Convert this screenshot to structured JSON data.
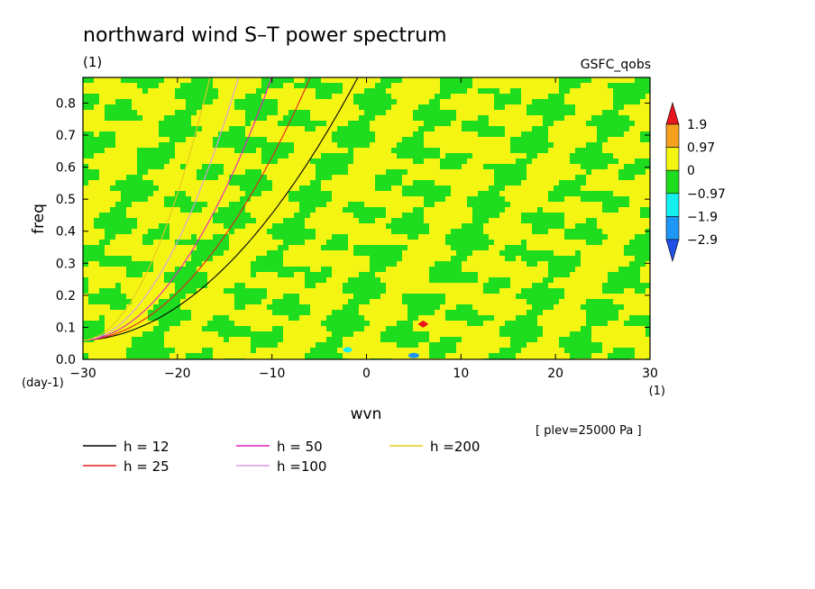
{
  "chart_data": {
    "type": "heatmap",
    "title": "northward wind S–T power spectrum",
    "units_note": "(1)",
    "dataset": "GSFC_qobs",
    "xlabel": "wvn",
    "ylabel": "freq",
    "x_unit": "(1)",
    "y_unit": "(day-1)",
    "xlim": [
      -30,
      30
    ],
    "ylim": [
      0,
      0.88
    ],
    "xticks": [
      -30,
      -20,
      -10,
      0,
      10,
      20,
      30
    ],
    "xtick_labels": [
      "−30",
      "−20",
      "−10",
      "0",
      "10",
      "20",
      "30"
    ],
    "yticks": [
      0,
      0.1,
      0.2,
      0.3,
      0.4,
      0.5,
      0.6,
      0.7,
      0.8
    ],
    "ytick_labels": [
      "0.0",
      "0.1",
      "0.2",
      "0.3",
      "0.4",
      "0.5",
      "0.6",
      "0.7",
      "0.8"
    ],
    "colorbar": {
      "levels": [
        "1.9",
        "0.97",
        "0",
        "−0.97",
        "−1.9",
        "−2.9"
      ],
      "colors": [
        "#e8141e",
        "#f5a01e",
        "#f5f514",
        "#1edc1e",
        "#14f0f0",
        "#1e96f5",
        "#1e50e6"
      ]
    },
    "field_note": "Mostly yellow (0 to 0.97) and green (-0.97 to 0) patchy field; small red spot near wvn 6, freq 0.11; small cyan/blue spots near wvn -2, 0.03 and wvn 5, 0.01",
    "series": [
      {
        "name": "h = 12",
        "color": "#000000",
        "h": 12
      },
      {
        "name": "h = 25",
        "color": "#e61e1e",
        "h": 25
      },
      {
        "name": "h = 50",
        "color": "#e61ebe",
        "h": 50
      },
      {
        "name": "h =100",
        "color": "#dc9ee6",
        "h": 100
      },
      {
        "name": "h =200",
        "color": "#e6c81e",
        "h": 200
      }
    ],
    "annotation": "[ plev=25000 Pa ]"
  }
}
